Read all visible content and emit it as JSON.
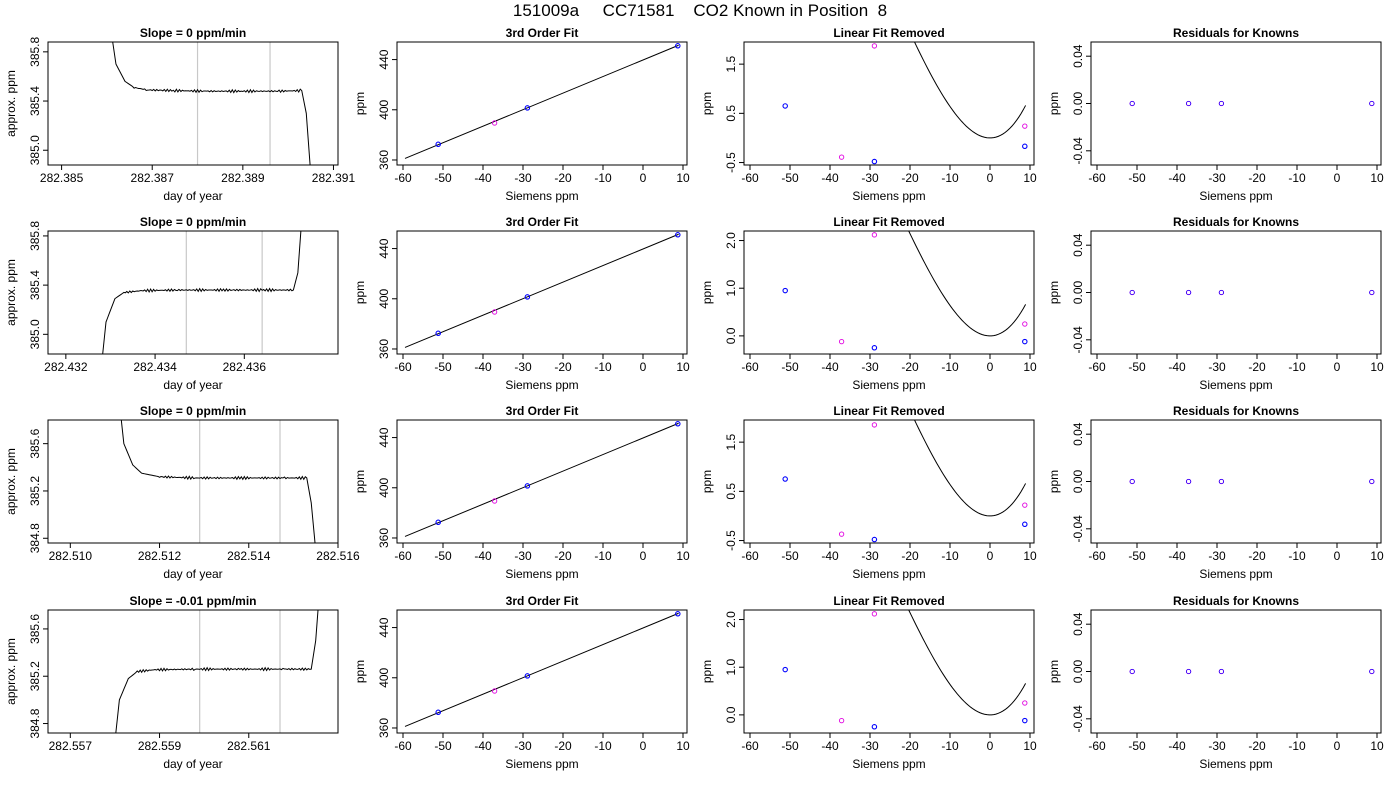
{
  "title": "151009a     CC71581    CO2 Known in Position  8",
  "colors": {
    "line": "#000000",
    "grey_line": "#c8c8c8",
    "known": "#0000ff",
    "unknown": "#e000e0",
    "frame": "#000000"
  },
  "chart_data": [
    {
      "type": "line",
      "row": 0,
      "col": 0,
      "title": "Slope =  0  ppm/min",
      "xlabel": "day of year",
      "ylabel": "approx. ppm",
      "xlim": [
        282.3847,
        282.3911
      ],
      "ylim": [
        384.88,
        385.88
      ],
      "xticks": [
        282.385,
        282.387,
        282.389,
        282.391
      ],
      "xtick_labels": [
        "282.385",
        "282.387",
        "282.389",
        "282.391"
      ],
      "yticks": [
        385.0,
        385.4,
        385.8
      ],
      "ytick_labels": [
        "385.0",
        "385.4",
        "385.8"
      ],
      "vlines": [
        282.388,
        282.3896
      ],
      "series": [
        {
          "x": [
            282.3861,
            282.3862,
            282.3864,
            282.3866,
            282.3869,
            282.3875,
            282.3882,
            282.389,
            282.3898,
            282.3903,
            282.3904,
            282.3905
          ],
          "y": [
            385.95,
            385.7,
            385.56,
            385.51,
            385.49,
            385.485,
            385.48,
            385.48,
            385.48,
            385.485,
            385.3,
            384.8
          ]
        }
      ]
    },
    {
      "type": "scatter",
      "row": 0,
      "col": 1,
      "title": "3rd Order Fit",
      "xlabel": "Siemens ppm",
      "ylabel": "ppm",
      "xlim": [
        -61.5,
        11.0
      ],
      "ylim": [
        356,
        454
      ],
      "xticks": [
        -60,
        -50,
        -40,
        -30,
        -20,
        -10,
        0,
        10
      ],
      "xtick_labels": [
        "-60",
        "-50",
        "-40",
        "-30",
        "-20",
        "-10",
        "0",
        "10"
      ],
      "yticks": [
        360,
        400,
        440
      ],
      "ytick_labels": [
        "360",
        "400",
        "440"
      ],
      "fit_line": {
        "x": [
          -59.5,
          8.9
        ],
        "y": [
          361.2,
          451.4
        ]
      },
      "known": {
        "x": [
          -51.2,
          -28.9,
          8.7
        ],
        "y": [
          372.5,
          401.5,
          451.0
        ]
      },
      "unknown": {
        "x": [
          -37.1
        ],
        "y": [
          389.5
        ]
      }
    },
    {
      "type": "scatter",
      "row": 0,
      "col": 2,
      "title": "Linear Fit Removed",
      "xlabel": "Siemens ppm",
      "ylabel": "ppm",
      "xlim": [
        -61.5,
        11.0
      ],
      "ylim": [
        -0.55,
        1.95
      ],
      "xticks": [
        -60,
        -50,
        -40,
        -30,
        -20,
        -10,
        0,
        10
      ],
      "xtick_labels": [
        "-60",
        "-50",
        "-40",
        "-30",
        "-20",
        "-10",
        "0",
        "10"
      ],
      "yticks": [
        -0.5,
        0.5,
        1.5
      ],
      "ytick_labels": [
        "-0.5",
        "0.5",
        "1.5"
      ],
      "curve": {
        "x_range": [
          -59.5,
          8.9
        ],
        "a": 0.000103,
        "b": 0.00742,
        "c": 0.0,
        "d": 0.0
      },
      "known": {
        "x": [
          -51.2,
          -28.9,
          8.7
        ],
        "y": [
          0.65,
          -0.48,
          -0.17
        ]
      },
      "unknown": {
        "x": [
          -37.1,
          -28.9,
          8.7
        ],
        "y": [
          -0.39,
          1.87,
          0.24
        ]
      }
    },
    {
      "type": "scatter",
      "row": 0,
      "col": 3,
      "title": "Residuals for Knowns",
      "xlabel": "Siemens ppm",
      "ylabel": "ppm",
      "xlim": [
        -61.5,
        11.0
      ],
      "ylim": [
        -0.052,
        0.052
      ],
      "xticks": [
        -60,
        -50,
        -40,
        -30,
        -20,
        -10,
        0,
        10
      ],
      "xtick_labels": [
        "-60",
        "-50",
        "-40",
        "-30",
        "-20",
        "-10",
        "0",
        "10"
      ],
      "yticks": [
        -0.04,
        0.0,
        0.04
      ],
      "ytick_labels": [
        "-0.04",
        "0.00",
        "0.04"
      ],
      "residuals": {
        "x": [
          -51.2,
          -37.1,
          -28.9,
          8.7
        ],
        "y": [
          0,
          0,
          0,
          0
        ]
      }
    },
    {
      "type": "line",
      "row": 1,
      "col": 0,
      "title": "Slope =  0  ppm/min",
      "xlabel": "day of year",
      "ylabel": "approx. ppm",
      "xlim": [
        282.4316,
        282.4381
      ],
      "ylim": [
        384.84,
        385.84
      ],
      "xticks": [
        282.432,
        282.434,
        282.436
      ],
      "xtick_labels": [
        "282.432",
        "282.434",
        "282.436"
      ],
      "yticks": [
        385.0,
        385.4,
        385.8
      ],
      "ytick_labels": [
        "385.0",
        "385.4",
        "385.8"
      ],
      "vlines": [
        282.4347,
        282.4364
      ],
      "series": [
        {
          "x": [
            282.4328,
            282.4329,
            282.4331,
            282.4333,
            282.4337,
            282.4345,
            282.4355,
            282.4364,
            282.4371,
            282.4372,
            282.4373
          ],
          "y": [
            384.75,
            385.1,
            385.29,
            385.34,
            385.355,
            385.36,
            385.36,
            385.36,
            385.36,
            385.5,
            386.0
          ]
        }
      ]
    },
    {
      "type": "scatter",
      "row": 1,
      "col": 1,
      "title": "3rd Order Fit",
      "xlabel": "Siemens ppm",
      "ylabel": "ppm",
      "xlim": [
        -61.5,
        11.0
      ],
      "ylim": [
        356,
        454
      ],
      "xticks": [
        -60,
        -50,
        -40,
        -30,
        -20,
        -10,
        0,
        10
      ],
      "xtick_labels": [
        "-60",
        "-50",
        "-40",
        "-30",
        "-20",
        "-10",
        "0",
        "10"
      ],
      "yticks": [
        360,
        400,
        440
      ],
      "ytick_labels": [
        "360",
        "400",
        "440"
      ],
      "fit_line": {
        "x": [
          -59.5,
          8.9
        ],
        "y": [
          361.2,
          451.4
        ]
      },
      "known": {
        "x": [
          -51.2,
          -28.9,
          8.7
        ],
        "y": [
          372.5,
          401.5,
          451.0
        ]
      },
      "unknown": {
        "x": [
          -37.1
        ],
        "y": [
          389.5
        ]
      }
    },
    {
      "type": "scatter",
      "row": 1,
      "col": 2,
      "title": "Linear Fit Removed",
      "xlabel": "Siemens ppm",
      "ylabel": "ppm",
      "xlim": [
        -61.5,
        11.0
      ],
      "ylim": [
        -0.38,
        2.2
      ],
      "xticks": [
        -60,
        -50,
        -40,
        -30,
        -20,
        -10,
        0,
        10
      ],
      "xtick_labels": [
        "-60",
        "-50",
        "-40",
        "-30",
        "-20",
        "-10",
        "0",
        "10"
      ],
      "yticks": [
        0.0,
        1.0,
        2.0
      ],
      "ytick_labels": [
        "0.0",
        "1.0",
        "2.0"
      ],
      "curve": {
        "x_range": [
          -59.5,
          8.9
        ],
        "a": 0.000103,
        "b": 0.00742,
        "c": 0.0,
        "d": 0.0
      },
      "known": {
        "x": [
          -51.2,
          -28.9,
          8.7
        ],
        "y": [
          0.95,
          -0.25,
          -0.12
        ]
      },
      "unknown": {
        "x": [
          -37.1,
          -28.9,
          8.7
        ],
        "y": [
          -0.12,
          2.12,
          0.25
        ]
      }
    },
    {
      "type": "scatter",
      "row": 1,
      "col": 3,
      "title": "Residuals for Knowns",
      "xlabel": "Siemens ppm",
      "ylabel": "ppm",
      "xlim": [
        -61.5,
        11.0
      ],
      "ylim": [
        -0.052,
        0.052
      ],
      "xticks": [
        -60,
        -50,
        -40,
        -30,
        -20,
        -10,
        0,
        10
      ],
      "xtick_labels": [
        "-60",
        "-50",
        "-40",
        "-30",
        "-20",
        "-10",
        "0",
        "10"
      ],
      "yticks": [
        -0.04,
        0.0,
        0.04
      ],
      "ytick_labels": [
        "-0.04",
        "0.00",
        "0.04"
      ],
      "residuals": {
        "x": [
          -51.2,
          -37.1,
          -28.9,
          8.7
        ],
        "y": [
          0,
          0,
          0,
          0
        ]
      }
    },
    {
      "type": "line",
      "row": 2,
      "col": 0,
      "title": "Slope =  0  ppm/min",
      "xlabel": "day of year",
      "ylabel": "approx. ppm",
      "xlim": [
        282.5095,
        282.516
      ],
      "ylim": [
        384.76,
        385.8
      ],
      "xticks": [
        282.51,
        282.512,
        282.514,
        282.516
      ],
      "xtick_labels": [
        "282.510",
        "282.512",
        "282.514",
        "282.516"
      ],
      "yticks": [
        384.8,
        385.2,
        385.6
      ],
      "ytick_labels": [
        "384.8",
        "385.2",
        "385.6"
      ],
      "vlines": [
        282.5129,
        282.5147
      ],
      "series": [
        {
          "x": [
            282.5111,
            282.5112,
            282.5114,
            282.5116,
            282.512,
            282.5128,
            282.5138,
            282.5148,
            282.5153,
            282.5154,
            282.5155
          ],
          "y": [
            385.95,
            385.6,
            385.42,
            385.35,
            385.32,
            385.31,
            385.31,
            385.31,
            385.31,
            385.1,
            384.7
          ]
        }
      ]
    },
    {
      "type": "scatter",
      "row": 2,
      "col": 1,
      "title": "3rd Order Fit",
      "xlabel": "Siemens ppm",
      "ylabel": "ppm",
      "xlim": [
        -61.5,
        11.0
      ],
      "ylim": [
        356,
        454
      ],
      "xticks": [
        -60,
        -50,
        -40,
        -30,
        -20,
        -10,
        0,
        10
      ],
      "xtick_labels": [
        "-60",
        "-50",
        "-40",
        "-30",
        "-20",
        "-10",
        "0",
        "10"
      ],
      "yticks": [
        360,
        400,
        440
      ],
      "ytick_labels": [
        "360",
        "400",
        "440"
      ],
      "fit_line": {
        "x": [
          -59.5,
          8.9
        ],
        "y": [
          361.2,
          451.4
        ]
      },
      "known": {
        "x": [
          -51.2,
          -28.9,
          8.7
        ],
        "y": [
          372.5,
          401.5,
          451.0
        ]
      },
      "unknown": {
        "x": [
          -37.1
        ],
        "y": [
          389.5
        ]
      }
    },
    {
      "type": "scatter",
      "row": 2,
      "col": 2,
      "title": "Linear Fit Removed",
      "xlabel": "Siemens ppm",
      "ylabel": "ppm",
      "xlim": [
        -61.5,
        11.0
      ],
      "ylim": [
        -0.55,
        1.95
      ],
      "xticks": [
        -60,
        -50,
        -40,
        -30,
        -20,
        -10,
        0,
        10
      ],
      "xtick_labels": [
        "-60",
        "-50",
        "-40",
        "-30",
        "-20",
        "-10",
        "0",
        "10"
      ],
      "yticks": [
        -0.5,
        0.5,
        1.5
      ],
      "ytick_labels": [
        "-0.5",
        "0.5",
        "1.5"
      ],
      "curve": {
        "x_range": [
          -59.5,
          8.9
        ],
        "a": 0.000103,
        "b": 0.00742,
        "c": 0.0,
        "d": 0.0
      },
      "known": {
        "x": [
          -51.2,
          -28.9,
          8.7
        ],
        "y": [
          0.75,
          -0.48,
          -0.17
        ]
      },
      "unknown": {
        "x": [
          -37.1,
          -28.9,
          8.7
        ],
        "y": [
          -0.37,
          1.85,
          0.22
        ]
      }
    },
    {
      "type": "scatter",
      "row": 2,
      "col": 3,
      "title": "Residuals for Knowns",
      "xlabel": "Siemens ppm",
      "ylabel": "ppm",
      "xlim": [
        -61.5,
        11.0
      ],
      "ylim": [
        -0.052,
        0.052
      ],
      "xticks": [
        -60,
        -50,
        -40,
        -30,
        -20,
        -10,
        0,
        10
      ],
      "xtick_labels": [
        "-60",
        "-50",
        "-40",
        "-30",
        "-20",
        "-10",
        "0",
        "10"
      ],
      "yticks": [
        -0.04,
        0.0,
        0.04
      ],
      "ytick_labels": [
        "-0.04",
        "0.00",
        "0.04"
      ],
      "residuals": {
        "x": [
          -51.2,
          -37.1,
          -28.9,
          8.7
        ],
        "y": [
          0,
          0,
          0,
          0
        ]
      }
    },
    {
      "type": "line",
      "row": 3,
      "col": 0,
      "title": "Slope =  -0.01  ppm/min",
      "xlabel": "day of year",
      "ylabel": "approx. ppm",
      "xlim": [
        282.5565,
        282.563
      ],
      "ylim": [
        384.72,
        385.76
      ],
      "xticks": [
        282.557,
        282.559,
        282.561
      ],
      "xtick_labels": [
        "282.557",
        "282.559",
        "282.561"
      ],
      "yticks": [
        384.8,
        385.2,
        385.6
      ],
      "ytick_labels": [
        "384.8",
        "385.2",
        "385.6"
      ],
      "vlines": [
        282.5599,
        282.5617
      ],
      "series": [
        {
          "x": [
            282.558,
            282.5581,
            282.5583,
            282.5585,
            282.5589,
            282.5598,
            282.5608,
            282.5618,
            282.5624,
            282.5625,
            282.5626
          ],
          "y": [
            384.65,
            385.0,
            385.18,
            385.24,
            385.255,
            385.26,
            385.26,
            385.26,
            385.26,
            385.5,
            386.0
          ]
        }
      ]
    },
    {
      "type": "scatter",
      "row": 3,
      "col": 1,
      "title": "3rd Order Fit",
      "xlabel": "Siemens ppm",
      "ylabel": "ppm",
      "xlim": [
        -61.5,
        11.0
      ],
      "ylim": [
        356,
        454
      ],
      "xticks": [
        -60,
        -50,
        -40,
        -30,
        -20,
        -10,
        0,
        10
      ],
      "xtick_labels": [
        "-60",
        "-50",
        "-40",
        "-30",
        "-20",
        "-10",
        "0",
        "10"
      ],
      "yticks": [
        360,
        400,
        440
      ],
      "ytick_labels": [
        "360",
        "400",
        "440"
      ],
      "fit_line": {
        "x": [
          -59.5,
          8.9
        ],
        "y": [
          361.2,
          451.4
        ]
      },
      "known": {
        "x": [
          -51.2,
          -28.9,
          8.7
        ],
        "y": [
          372.5,
          401.5,
          451.0
        ]
      },
      "unknown": {
        "x": [
          -37.1
        ],
        "y": [
          389.5
        ]
      }
    },
    {
      "type": "scatter",
      "row": 3,
      "col": 2,
      "title": "Linear Fit Removed",
      "xlabel": "Siemens ppm",
      "ylabel": "ppm",
      "xlim": [
        -61.5,
        11.0
      ],
      "ylim": [
        -0.38,
        2.2
      ],
      "xticks": [
        -60,
        -50,
        -40,
        -30,
        -20,
        -10,
        0,
        10
      ],
      "xtick_labels": [
        "-60",
        "-50",
        "-40",
        "-30",
        "-20",
        "-10",
        "0",
        "10"
      ],
      "yticks": [
        0.0,
        1.0,
        2.0
      ],
      "ytick_labels": [
        "0.0",
        "1.0",
        "2.0"
      ],
      "curve": {
        "x_range": [
          -59.5,
          8.9
        ],
        "a": 0.000103,
        "b": 0.00742,
        "c": 0.0,
        "d": 0.0
      },
      "known": {
        "x": [
          -51.2,
          -28.9,
          8.7
        ],
        "y": [
          0.95,
          -0.25,
          -0.12
        ]
      },
      "unknown": {
        "x": [
          -37.1,
          -28.9,
          8.7
        ],
        "y": [
          -0.12,
          2.12,
          0.25
        ]
      }
    },
    {
      "type": "scatter",
      "row": 3,
      "col": 3,
      "title": "Residuals for Knowns",
      "xlabel": "Siemens ppm",
      "ylabel": "ppm",
      "xlim": [
        -61.5,
        11.0
      ],
      "ylim": [
        -0.052,
        0.052
      ],
      "xticks": [
        -60,
        -50,
        -40,
        -30,
        -20,
        -10,
        0,
        10
      ],
      "xtick_labels": [
        "-60",
        "-50",
        "-40",
        "-30",
        "-20",
        "-10",
        "0",
        "10"
      ],
      "yticks": [
        -0.04,
        0.0,
        0.04
      ],
      "ytick_labels": [
        "-0.04",
        "0.00",
        "0.04"
      ],
      "residuals": {
        "x": [
          -51.2,
          -37.1,
          -28.9,
          8.7
        ],
        "y": [
          0,
          0,
          0,
          0
        ]
      }
    }
  ]
}
